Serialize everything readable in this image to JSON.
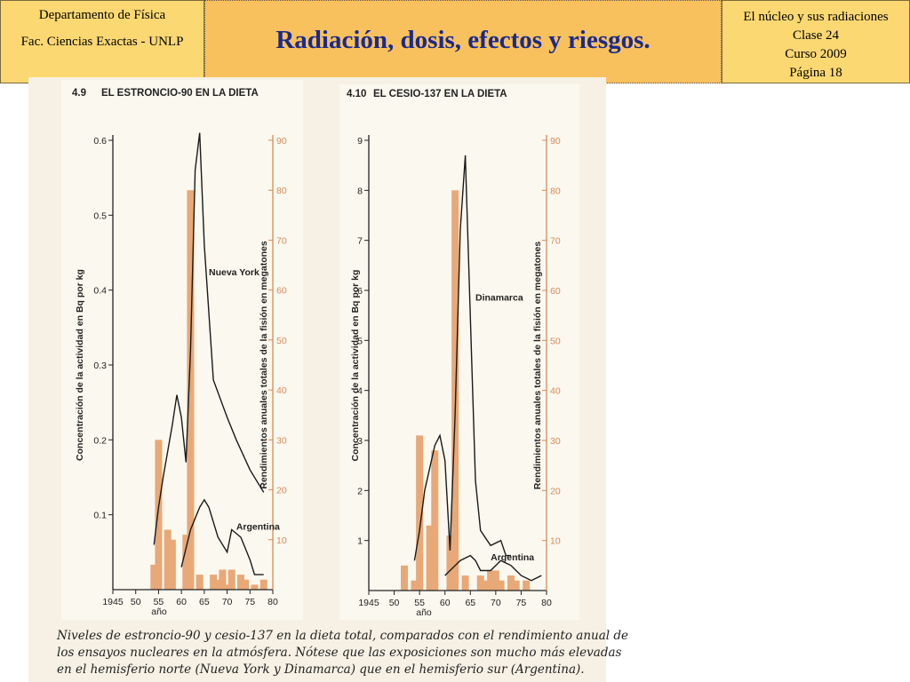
{
  "header": {
    "dept": "Departamento de Física",
    "faculty": "Fac. Ciencias Exactas - UNLP",
    "title": "Radiación, dosis, efectos y riesgos.",
    "course_lines": [
      "El núcleo y sus radiaciones",
      "Clase 24",
      "Curso 2009",
      "Página 18"
    ]
  },
  "colors": {
    "bar": "#e8a877",
    "line": "#1a1a1a",
    "axis_right": "#d98a55",
    "title": "#1b2a8c"
  },
  "chart_data": [
    {
      "type": "bar",
      "number": "4.9",
      "title": "EL ESTRONCIO-90 EN LA DIETA",
      "xlabel": "año",
      "ylabel_left": "Concentración de la actividad en Bq por kg",
      "ylabel_right": "Rendimientos anuales totales de la fisión en megatones",
      "xlim": [
        1945,
        1980
      ],
      "ylim_left": [
        0,
        0.6
      ],
      "ylim_right": [
        0,
        90
      ],
      "x_ticks": [
        "1945",
        "50",
        "55",
        "60",
        "65",
        "70",
        "75",
        "80"
      ],
      "y_left_ticks": [
        "0.1",
        "0.2",
        "0.3",
        "0.4",
        "0.5",
        "0.6"
      ],
      "y_right_ticks": [
        "10",
        "20",
        "30",
        "40",
        "50",
        "60",
        "70",
        "80",
        "90"
      ],
      "bars": {
        "name": "Rendimiento de fisión (megatones)",
        "x": [
          1954,
          1955,
          1957,
          1958,
          1961,
          1962,
          1964,
          1967,
          1968,
          1969,
          1970,
          1971,
          1973,
          1974,
          1976,
          1978
        ],
        "values": [
          5,
          30,
          12,
          10,
          11,
          80,
          3,
          3,
          2,
          4,
          1,
          4,
          3,
          2,
          1,
          2
        ]
      },
      "series": [
        {
          "name": "Nueva York",
          "x": [
            1954,
            1955,
            1956,
            1958,
            1959,
            1960,
            1961,
            1962,
            1963,
            1964,
            1965,
            1967,
            1970,
            1972,
            1975,
            1978
          ],
          "values": [
            0.06,
            0.11,
            0.15,
            0.22,
            0.26,
            0.23,
            0.17,
            0.32,
            0.56,
            0.61,
            0.46,
            0.28,
            0.23,
            0.2,
            0.16,
            0.13
          ]
        },
        {
          "name": "Argentina",
          "x": [
            1960,
            1962,
            1964,
            1965,
            1966,
            1968,
            1970,
            1971,
            1973,
            1975,
            1976,
            1978
          ],
          "values": [
            0.03,
            0.08,
            0.11,
            0.12,
            0.11,
            0.07,
            0.05,
            0.08,
            0.07,
            0.04,
            0.02,
            0.02
          ]
        }
      ],
      "labels": {
        "Nueva York": [
          1966,
          0.42
        ],
        "Argentina": [
          1972,
          0.08
        ]
      }
    },
    {
      "type": "bar",
      "number": "4.10",
      "title": "EL CESIO-137 EN LA DIETA",
      "xlabel": "año",
      "ylabel_left": "Concentración de la actividad en Bq por kg",
      "ylabel_right": "Rendimientos anuales totales de la fisión en megatones",
      "xlim": [
        1945,
        1980
      ],
      "ylim_left": [
        0,
        9
      ],
      "ylim_right": [
        0,
        90
      ],
      "x_ticks": [
        "1945",
        "50",
        "55",
        "60",
        "65",
        "70",
        "75",
        "80"
      ],
      "y_left_ticks": [
        "1",
        "2",
        "3",
        "4",
        "5",
        "6",
        "7",
        "8",
        "9"
      ],
      "y_right_ticks": [
        "10",
        "20",
        "30",
        "40",
        "50",
        "60",
        "70",
        "80",
        "90"
      ],
      "bars": {
        "name": "Rendimiento de fisión (megatones)",
        "x": [
          1952,
          1954,
          1955,
          1957,
          1958,
          1961,
          1962,
          1964,
          1967,
          1968,
          1969,
          1970,
          1971,
          1973,
          1974,
          1976
        ],
        "values": [
          5,
          2,
          31,
          13,
          28,
          11,
          80,
          3,
          3,
          2,
          4,
          4,
          2,
          3,
          2,
          2
        ]
      },
      "series": [
        {
          "name": "Dinamarca",
          "x": [
            1954,
            1955,
            1956,
            1958,
            1959,
            1960,
            1961,
            1962,
            1963,
            1964,
            1966,
            1967,
            1969,
            1971,
            1972,
            1973
          ],
          "values": [
            0.6,
            1.2,
            2.0,
            2.9,
            3.1,
            2.6,
            0.8,
            3.5,
            7.2,
            8.7,
            2.2,
            1.2,
            0.9,
            1.0,
            0.7,
            0.7
          ]
        },
        {
          "name": "Argentina",
          "x": [
            1960,
            1961,
            1963,
            1965,
            1966,
            1967,
            1969,
            1971,
            1973,
            1975,
            1977,
            1979
          ],
          "values": [
            0.3,
            0.4,
            0.6,
            0.7,
            0.6,
            0.4,
            0.4,
            0.6,
            0.5,
            0.3,
            0.2,
            0.3
          ]
        }
      ],
      "labels": {
        "Dinamarca": [
          1966,
          5.8
        ],
        "Argentina": [
          1969,
          0.6
        ]
      }
    }
  ],
  "caption": [
    "Niveles de estroncio-90 y cesio-137 en la dieta total, comparados con el rendimiento anual de",
    "los ensayos nucleares en la atmósfera. Nótese que las exposiciones son mucho más elevadas",
    "en el hemisferio norte (Nueva York y Dinamarca) que en el hemisferio sur (Argentina)."
  ]
}
